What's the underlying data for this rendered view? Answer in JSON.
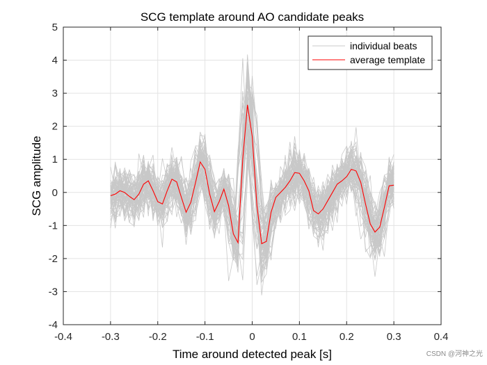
{
  "chart_data": {
    "type": "line",
    "title": "SCG template around AO candidate peaks",
    "xlabel": "Time around detected peak [s]",
    "ylabel": "SCG amplitude",
    "xlim": [
      -0.4,
      0.4
    ],
    "ylim": [
      -4,
      5
    ],
    "xticks": [
      -0.4,
      -0.3,
      -0.2,
      -0.1,
      0,
      0.1,
      0.2,
      0.3,
      0.4
    ],
    "xtick_labels": [
      "-0.4",
      "-0.3",
      "-0.2",
      "-0.1",
      "0",
      "0.1",
      "0.2",
      "0.3",
      "0.4"
    ],
    "yticks": [
      -4,
      -3,
      -2,
      -1,
      0,
      1,
      2,
      3,
      4,
      5
    ],
    "ytick_labels": [
      "-4",
      "-3",
      "-2",
      "-1",
      "0",
      "1",
      "2",
      "3",
      "4",
      "5"
    ],
    "grid": true,
    "legend_position": "top-right",
    "legend": [
      {
        "label": "individual beats",
        "color": "#c8c8c8"
      },
      {
        "label": "average template",
        "color": "#ff0000"
      }
    ],
    "series": [
      {
        "name": "average template",
        "color": "#ff0000",
        "x": [
          -0.3,
          -0.29,
          -0.28,
          -0.27,
          -0.26,
          -0.25,
          -0.24,
          -0.23,
          -0.22,
          -0.21,
          -0.2,
          -0.19,
          -0.18,
          -0.17,
          -0.16,
          -0.15,
          -0.14,
          -0.13,
          -0.12,
          -0.11,
          -0.1,
          -0.09,
          -0.08,
          -0.07,
          -0.06,
          -0.05,
          -0.04,
          -0.03,
          -0.02,
          -0.01,
          0.0,
          0.01,
          0.02,
          0.03,
          0.04,
          0.05,
          0.06,
          0.07,
          0.08,
          0.09,
          0.1,
          0.11,
          0.12,
          0.13,
          0.14,
          0.15,
          0.16,
          0.17,
          0.18,
          0.19,
          0.2,
          0.21,
          0.22,
          0.23,
          0.24,
          0.25,
          0.26,
          0.27,
          0.28,
          0.29,
          0.3
        ],
        "values": [
          -0.1,
          -0.05,
          0.05,
          0.0,
          -0.12,
          -0.22,
          -0.05,
          0.25,
          0.35,
          0.05,
          -0.28,
          -0.35,
          0.05,
          0.4,
          0.32,
          -0.15,
          -0.6,
          -0.3,
          0.3,
          0.92,
          0.7,
          -0.05,
          -0.58,
          -0.28,
          0.1,
          -0.4,
          -1.25,
          -1.52,
          1.0,
          2.65,
          1.7,
          -0.4,
          -1.55,
          -1.48,
          -0.6,
          -0.15,
          0.0,
          0.15,
          0.35,
          0.6,
          0.58,
          0.35,
          0.05,
          -0.55,
          -0.65,
          -0.5,
          -0.25,
          0.0,
          0.25,
          0.35,
          0.48,
          0.7,
          0.65,
          0.3,
          -0.35,
          -0.95,
          -1.2,
          -1.05,
          -0.45,
          0.2,
          0.22
        ]
      }
    ],
    "individual_beats_envelope": {
      "name": "individual beats",
      "color": "#c8c8c8",
      "x_range": [
        -0.3,
        0.3
      ],
      "min": -3.5,
      "max": 4.25
    }
  },
  "watermark": "CSDN @河神之光"
}
